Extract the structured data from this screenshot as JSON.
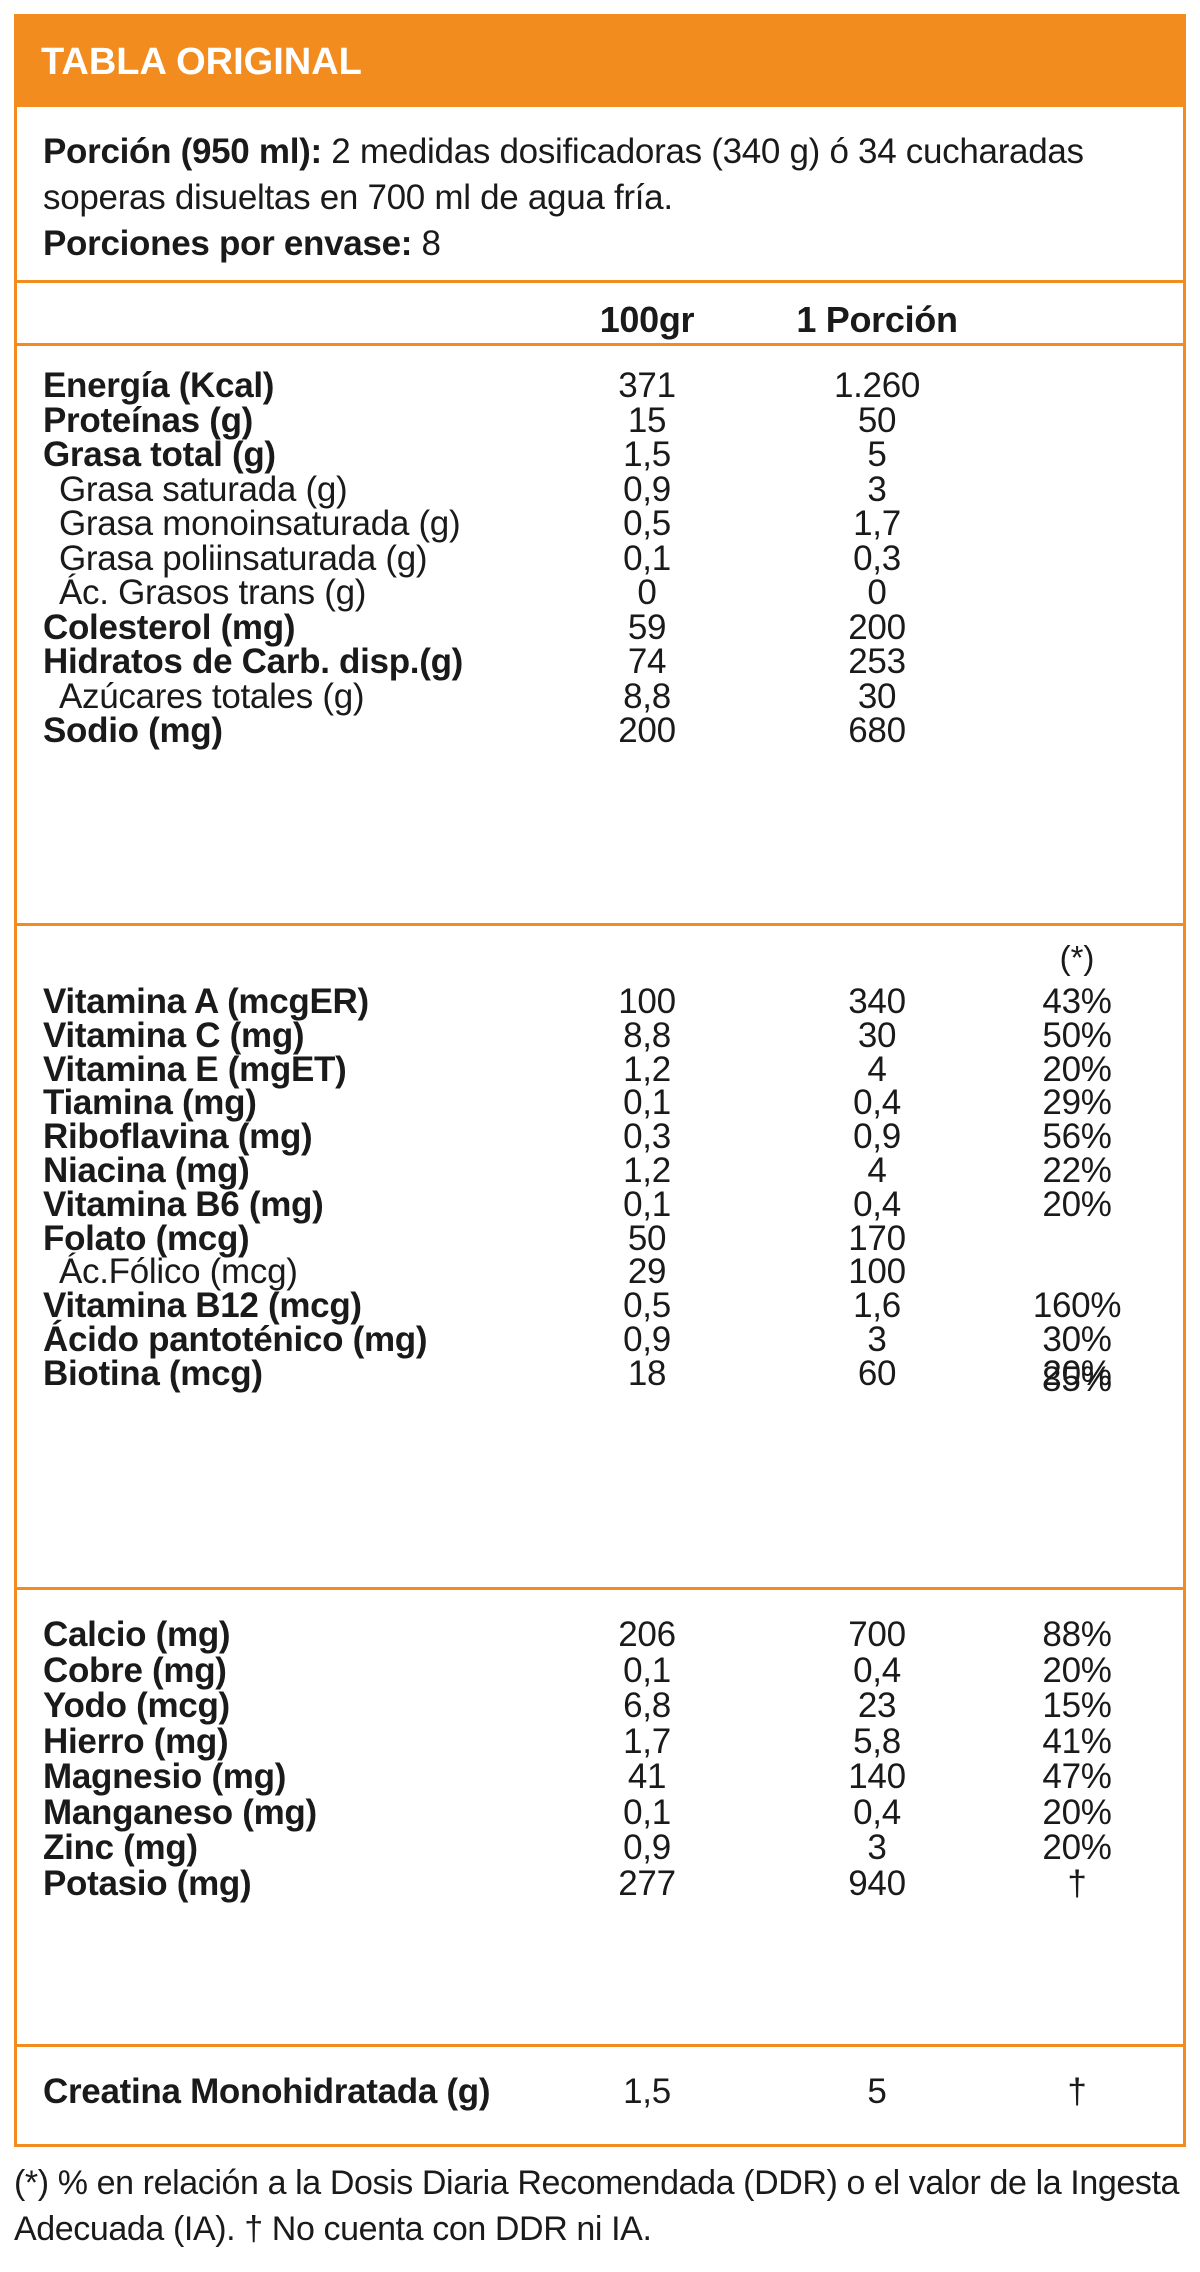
{
  "title": "TABLA ORIGINAL",
  "serving": {
    "portion_label": "Porción (950 ml):",
    "portion_text": " 2 medidas dosificadoras (340 g) ó 34 cucharadas soperas disueltas en 700 ml de agua fría.",
    "servings_label": "Porciones por envase:",
    "servings_value": " 8"
  },
  "columns": {
    "per100": "100gr",
    "perPortion": "1 Porción",
    "pct_note": "(*)"
  },
  "macros": [
    {
      "label": "Energía (Kcal)",
      "v100": "371",
      "vp": "1.260",
      "bold": true
    },
    {
      "label": "Proteínas (g)",
      "v100": "15",
      "vp": "50",
      "bold": true
    },
    {
      "label": "Grasa total (g)",
      "v100": "1,5",
      "vp": "5",
      "bold": true
    },
    {
      "label": "Grasa saturada (g)",
      "v100": "0,9",
      "vp": "3",
      "bold": false
    },
    {
      "label": "Grasa monoinsaturada (g)",
      "v100": "0,5",
      "vp": "1,7",
      "bold": false
    },
    {
      "label": "Grasa poliinsaturada (g)",
      "v100": "0,1",
      "vp": "0,3",
      "bold": false
    },
    {
      "label": "Ác. Grasos trans (g)",
      "v100": "0",
      "vp": "0",
      "bold": false
    },
    {
      "label": "Colesterol (mg)",
      "v100": "59",
      "vp": "200",
      "bold": true
    },
    {
      "label": "Hidratos de Carb. disp.(g)",
      "v100": "74",
      "vp": "253",
      "bold": true
    },
    {
      "label": "Azúcares totales (g)",
      "v100": "8,8",
      "vp": "30",
      "bold": false
    },
    {
      "label": "Sodio (mg)",
      "v100": "200",
      "vp": "680",
      "bold": true
    }
  ],
  "vitamins": [
    {
      "label": "Vitamina A (mcgER)",
      "v100": "100",
      "vp": "340",
      "pct": "43%",
      "bold": true
    },
    {
      "label": "Vitamina C (mg)",
      "v100": "8,8",
      "vp": "30",
      "pct": "50%",
      "bold": true
    },
    {
      "label": "Vitamina E (mgET)",
      "v100": "1,2",
      "vp": "4",
      "pct": "20%",
      "bold": true
    },
    {
      "label": "Tiamina (mg)",
      "v100": "0,1",
      "vp": "0,4",
      "pct": "29%",
      "bold": true
    },
    {
      "label": "Riboflavina (mg)",
      "v100": "0,3",
      "vp": "0,9",
      "pct": "56%",
      "bold": true
    },
    {
      "label": "Niacina (mg)",
      "v100": "1,2",
      "vp": "4",
      "pct": "22%",
      "bold": true
    },
    {
      "label": "Vitamina B6 (mg)",
      "v100": "0,1",
      "vp": "0,4",
      "pct": "20%",
      "bold": true
    },
    {
      "label": "Folato (mcg)",
      "v100": "50",
      "vp": "170",
      "pct": "",
      "bold": true
    },
    {
      "label": "Ác.Fólico (mcg)",
      "v100": "29",
      "vp": "100",
      "pct": "",
      "bold": false
    },
    {
      "label": "Vitamina B12 (mcg)",
      "v100": "0,5",
      "vp": "1,6",
      "pct": "160%",
      "bold": true
    },
    {
      "label": "Ácido pantoténico (mg)",
      "v100": "0,9",
      "vp": "3",
      "pct": "30%",
      "bold": true
    },
    {
      "label": "Biotina (mcg)",
      "v100": "18",
      "vp": "60",
      "pct": "20%",
      "bold": true
    }
  ],
  "folate_pct": "85%",
  "minerals": [
    {
      "label": "Calcio (mg)",
      "v100": "206",
      "vp": "700",
      "pct": "88%",
      "bold": true
    },
    {
      "label": "Cobre (mg)",
      "v100": "0,1",
      "vp": "0,4",
      "pct": "20%",
      "bold": true
    },
    {
      "label": "Yodo (mcg)",
      "v100": "6,8",
      "vp": "23",
      "pct": "15%",
      "bold": true
    },
    {
      "label": "Hierro (mg)",
      "v100": "1,7",
      "vp": "5,8",
      "pct": "41%",
      "bold": true
    },
    {
      "label": "Magnesio (mg)",
      "v100": "41",
      "vp": "140",
      "pct": "47%",
      "bold": true
    },
    {
      "label": "Manganeso (mg)",
      "v100": "0,1",
      "vp": "0,4",
      "pct": "20%",
      "bold": true
    },
    {
      "label": "Zinc (mg)",
      "v100": "0,9",
      "vp": "3",
      "pct": "20%",
      "bold": true
    },
    {
      "label": "Potasio (mg)",
      "v100": "277",
      "vp": "940",
      "pct": "†",
      "bold": true
    }
  ],
  "extra": [
    {
      "label": "Creatina Monohidratada (g)",
      "v100": "1,5",
      "vp": "5",
      "pct": "†",
      "bold": true
    }
  ],
  "footnote": "(*) % en relación a la Dosis Diaria Recomendada (DDR) o el valor de la Ingesta Adecuada (IA). † No cuenta con DDR ni IA.",
  "colors": {
    "accent": "#f28c1e",
    "header_text": "#ffffff",
    "text": "#1a1a1a"
  }
}
